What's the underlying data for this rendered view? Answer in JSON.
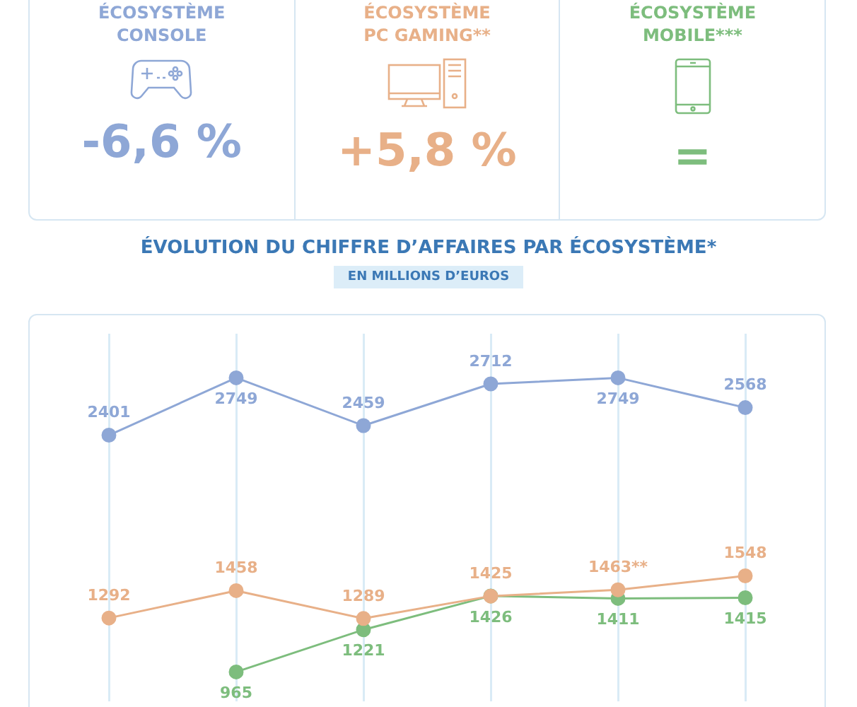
{
  "chart_data": [
    {
      "type": "other",
      "categories": [
        "ÉCOSYSTÈME\nCONSOLE",
        "ÉCOSYSTÈME\nPC GAMING**",
        "ÉCOSYSTÈME\nMOBILE***"
      ],
      "value_labels": [
        "-6,6 %",
        "+5,8 %",
        "="
      ],
      "colors": [
        "#8ea7d6",
        "#e8b088",
        "#7dbd7d"
      ]
    },
    {
      "type": "line",
      "title": "ÉVOLUTION DU CHIFFRE D’AFFAIRES PAR ÉCOSYSTÈME*",
      "subtitle": "EN MILLIONS D’EUROS",
      "categories": [
        null,
        null,
        null,
        null,
        null,
        null
      ],
      "marker": "circle",
      "grid": "x",
      "legend": false,
      "tick_labels": false,
      "data_labels": true,
      "series": [
        {
          "color": "#8ea7d6",
          "values": [
            2401,
            2749,
            2459,
            2712,
            2749,
            2568
          ]
        },
        {
          "color": "#e8b088",
          "values": [
            1292,
            1458,
            1289,
            1425,
            1463,
            1548
          ],
          "value_labels": [
            "1292",
            "1458",
            "1289",
            "1425",
            "1463**",
            "1548"
          ]
        },
        {
          "color": "#7dbd7d",
          "values": [
            null,
            965,
            1221,
            1426,
            1411,
            1415
          ]
        }
      ]
    }
  ]
}
